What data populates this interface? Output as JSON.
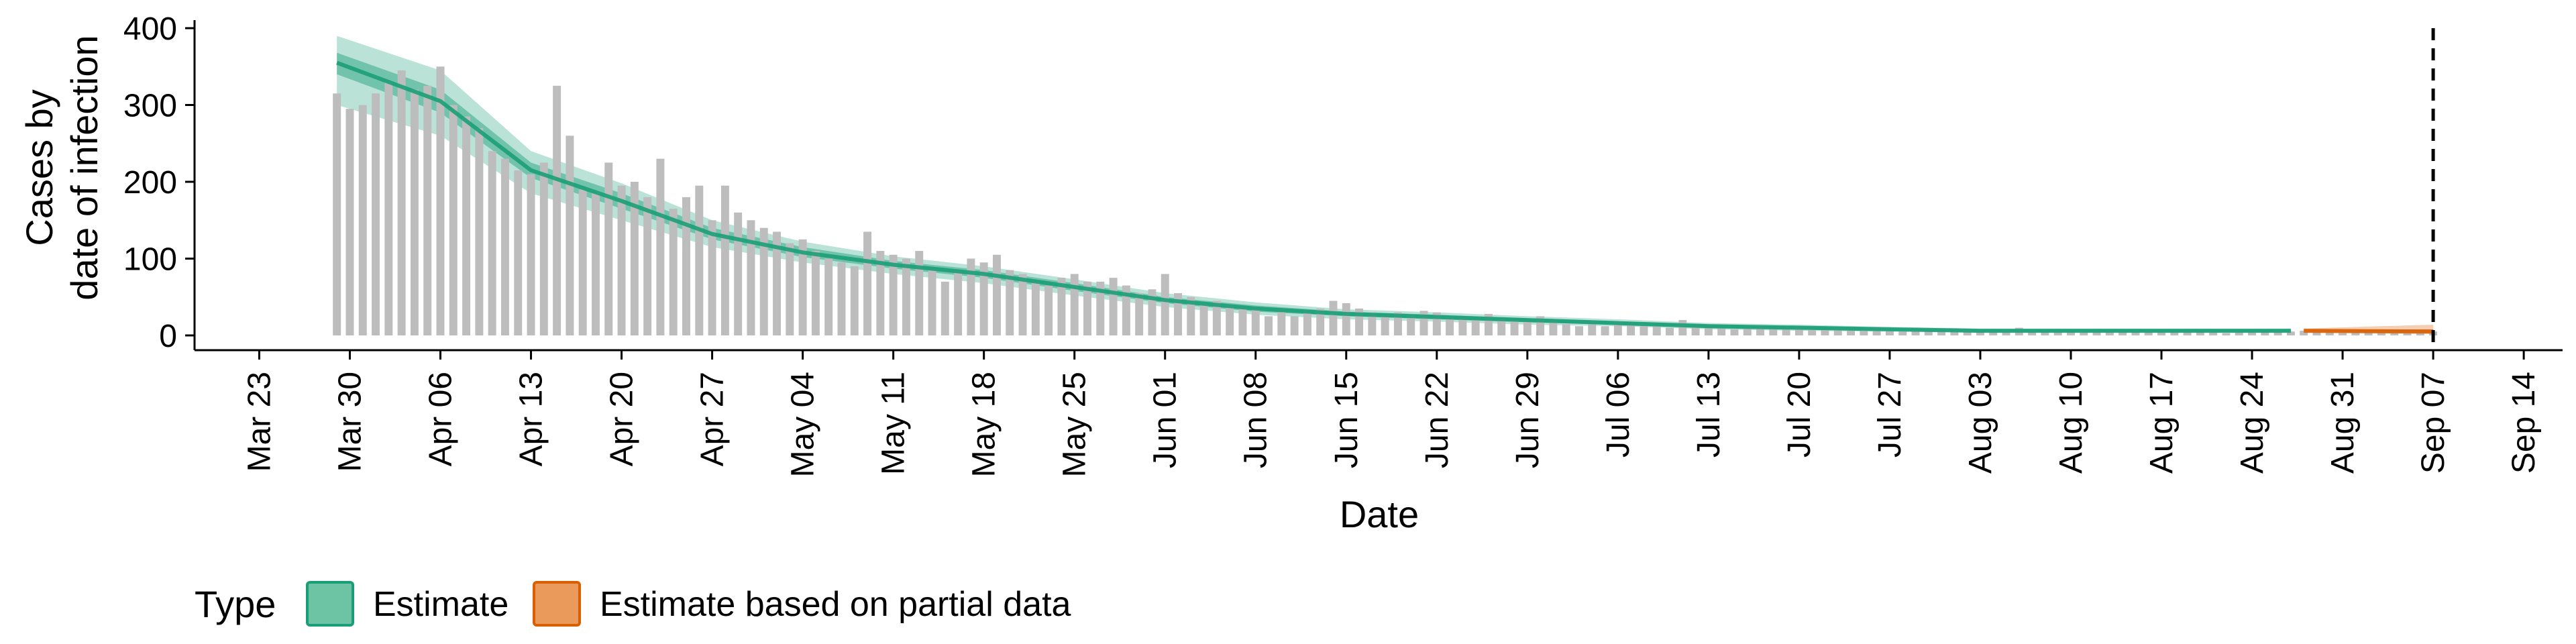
{
  "chart_data": {
    "type": "bar",
    "title": "",
    "xlabel": "Date",
    "ylabel_lines": [
      "Cases by",
      "date of infection"
    ],
    "ylim": [
      0,
      400
    ],
    "yticks": [
      0,
      100,
      200,
      300,
      400
    ],
    "xlim": [
      "2020-03-18",
      "2020-09-17"
    ],
    "xticks": [
      {
        "date": "2020-03-23",
        "label": "Mar 23"
      },
      {
        "date": "2020-03-30",
        "label": "Mar 30"
      },
      {
        "date": "2020-04-06",
        "label": "Apr 06"
      },
      {
        "date": "2020-04-13",
        "label": "Apr 13"
      },
      {
        "date": "2020-04-20",
        "label": "Apr 20"
      },
      {
        "date": "2020-04-27",
        "label": "Apr 27"
      },
      {
        "date": "2020-05-04",
        "label": "May 04"
      },
      {
        "date": "2020-05-11",
        "label": "May 11"
      },
      {
        "date": "2020-05-18",
        "label": "May 18"
      },
      {
        "date": "2020-05-25",
        "label": "May 25"
      },
      {
        "date": "2020-06-01",
        "label": "Jun 01"
      },
      {
        "date": "2020-06-08",
        "label": "Jun 08"
      },
      {
        "date": "2020-06-15",
        "label": "Jun 15"
      },
      {
        "date": "2020-06-22",
        "label": "Jun 22"
      },
      {
        "date": "2020-06-29",
        "label": "Jun 29"
      },
      {
        "date": "2020-07-06",
        "label": "Jul 06"
      },
      {
        "date": "2020-07-13",
        "label": "Jul 13"
      },
      {
        "date": "2020-07-20",
        "label": "Jul 20"
      },
      {
        "date": "2020-07-27",
        "label": "Jul 27"
      },
      {
        "date": "2020-08-03",
        "label": "Aug 03"
      },
      {
        "date": "2020-08-10",
        "label": "Aug 10"
      },
      {
        "date": "2020-08-17",
        "label": "Aug 17"
      },
      {
        "date": "2020-08-24",
        "label": "Aug 24"
      },
      {
        "date": "2020-08-31",
        "label": "Aug 31"
      },
      {
        "date": "2020-09-07",
        "label": "Sep 07"
      },
      {
        "date": "2020-09-14",
        "label": "Sep 14"
      }
    ],
    "bars_start_date": "2020-03-29",
    "bar_color": "#bdbdbd",
    "bars": [
      315,
      295,
      300,
      315,
      330,
      345,
      320,
      325,
      350,
      300,
      285,
      270,
      240,
      230,
      215,
      210,
      225,
      325,
      260,
      190,
      185,
      225,
      195,
      200,
      180,
      230,
      165,
      180,
      195,
      150,
      195,
      160,
      150,
      140,
      135,
      120,
      125,
      110,
      100,
      95,
      90,
      135,
      110,
      105,
      100,
      110,
      85,
      70,
      85,
      100,
      95,
      105,
      85,
      80,
      70,
      65,
      75,
      80,
      70,
      70,
      75,
      65,
      55,
      60,
      80,
      55,
      50,
      40,
      45,
      40,
      35,
      35,
      25,
      30,
      25,
      30,
      35,
      45,
      42,
      35,
      30,
      25,
      30,
      28,
      32,
      30,
      25,
      22,
      20,
      28,
      22,
      20,
      18,
      25,
      20,
      15,
      12,
      15,
      12,
      18,
      15,
      15,
      12,
      10,
      20,
      12,
      10,
      10,
      8,
      10,
      12,
      8,
      8,
      10,
      7,
      8,
      10,
      8,
      6,
      10,
      7,
      5,
      6,
      7,
      5,
      6,
      8,
      6,
      5,
      7,
      10,
      8,
      6,
      5,
      5,
      4,
      5,
      6,
      5,
      8,
      6,
      4,
      5,
      5,
      5,
      4,
      3,
      4,
      4,
      5,
      6,
      5,
      6,
      5,
      4,
      3,
      5,
      5,
      4,
      3,
      3,
      4,
      5
    ],
    "series": [
      {
        "name": "Estimate",
        "color": "#1b9e77",
        "start_date": "2020-03-29",
        "end_date": "2020-08-27",
        "key_dates": [
          "2020-03-29",
          "2020-04-06",
          "2020-04-13",
          "2020-04-20",
          "2020-04-27",
          "2020-05-04",
          "2020-05-11",
          "2020-05-18",
          "2020-05-25",
          "2020-06-01",
          "2020-06-08",
          "2020-06-15",
          "2020-06-22",
          "2020-06-29",
          "2020-07-06",
          "2020-07-13",
          "2020-07-20",
          "2020-07-27",
          "2020-08-03",
          "2020-08-10",
          "2020-08-17",
          "2020-08-27"
        ],
        "median": [
          355,
          305,
          215,
          175,
          132,
          108,
          92,
          80,
          63,
          46,
          35,
          28,
          24,
          20,
          16,
          12,
          10,
          8,
          6,
          6,
          6,
          6
        ],
        "lower50": [
          340,
          290,
          205,
          165,
          125,
          102,
          87,
          75,
          58,
          42,
          31,
          25,
          21,
          17,
          14,
          10,
          8,
          7,
          5,
          5,
          5,
          5
        ],
        "upper50": [
          368,
          320,
          225,
          185,
          140,
          115,
          97,
          85,
          68,
          50,
          39,
          31,
          27,
          22,
          18,
          14,
          12,
          9,
          7,
          7,
          7,
          7
        ],
        "lower90": [
          300,
          260,
          185,
          150,
          115,
          95,
          80,
          68,
          52,
          37,
          27,
          21,
          18,
          14,
          12,
          8,
          6,
          5,
          4,
          4,
          4,
          4
        ],
        "upper90": [
          390,
          345,
          240,
          198,
          150,
          122,
          103,
          90,
          73,
          55,
          43,
          34,
          30,
          25,
          21,
          16,
          14,
          11,
          9,
          9,
          9,
          9
        ]
      },
      {
        "name": "Estimate based on partial data",
        "color": "#d95f02",
        "start_date": "2020-08-28",
        "end_date": "2020-09-07",
        "key_dates": [
          "2020-08-28",
          "2020-09-07"
        ],
        "median": [
          6,
          5
        ],
        "lower50": [
          5,
          4
        ],
        "upper50": [
          7,
          8
        ],
        "lower90": [
          4,
          2
        ],
        "upper90": [
          9,
          14
        ]
      }
    ],
    "vline_date": "2020-09-07",
    "legend": {
      "title": "Type",
      "position": "bottom-left",
      "items": [
        {
          "label": "Estimate",
          "fill": "#6cc4a4",
          "stroke": "#1b9e77"
        },
        {
          "label": "Estimate based on partial data",
          "fill": "#ea9a5b",
          "stroke": "#d95f02"
        }
      ]
    },
    "grid": false
  }
}
